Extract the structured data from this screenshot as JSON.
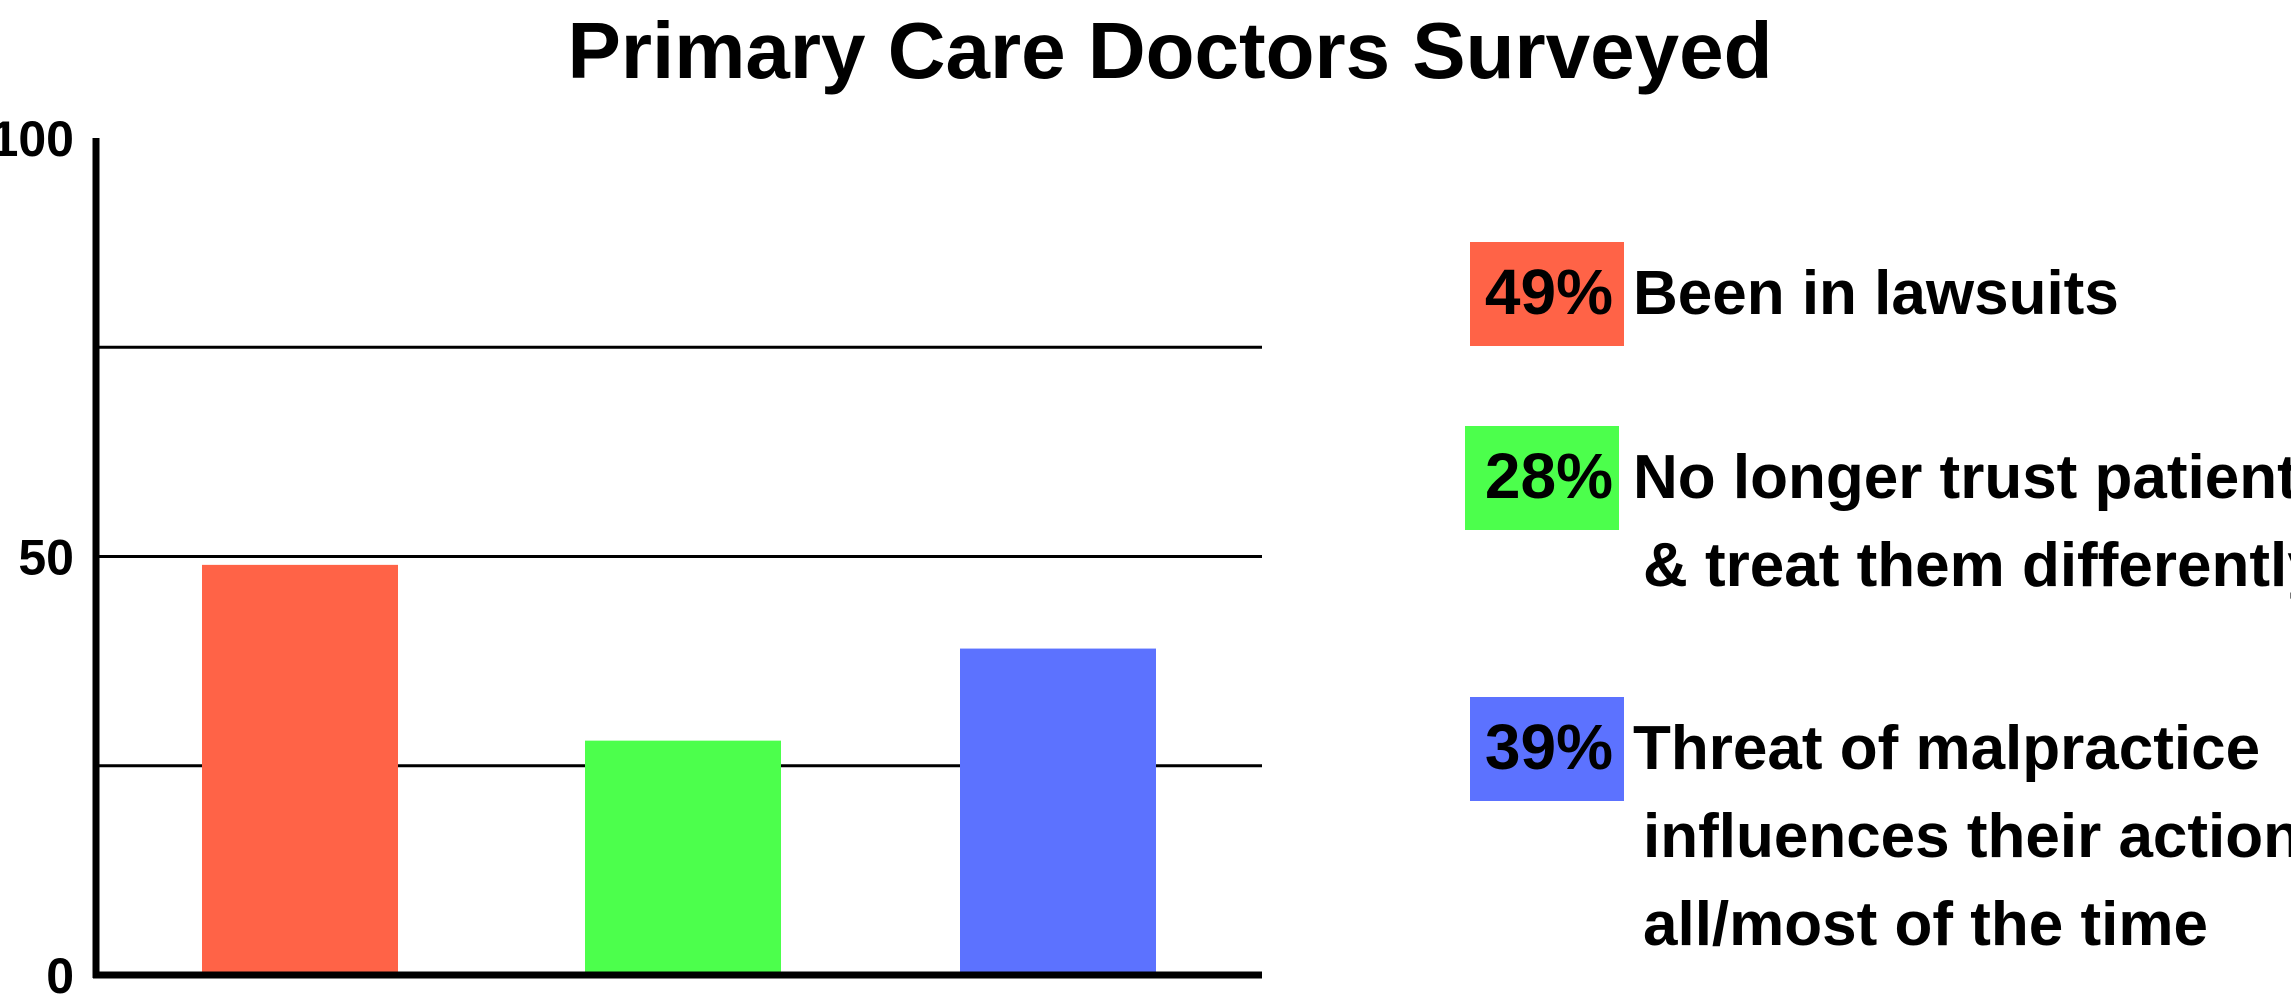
{
  "chart_data": {
    "type": "bar",
    "title": "Primary Care Doctors Surveyed",
    "xlabel": "",
    "ylabel": "",
    "ylim": [
      0,
      100
    ],
    "yticks": [
      {
        "value": 0,
        "label": "0"
      },
      {
        "value": 50,
        "label": "50"
      },
      {
        "value": 100,
        "label": "100"
      }
    ],
    "gridlines": [
      25,
      50,
      75
    ],
    "categories": [
      "Been in lawsuits",
      "No longer trust patients & treat them differently",
      "Threat of malpractice influences their actions all/most of the time"
    ],
    "values": [
      49,
      28,
      39
    ],
    "colors": [
      "#ff6347",
      "#4cff4c",
      "#5c72ff"
    ],
    "legend_position": "right",
    "legend": [
      {
        "percent": "49%",
        "lines": [
          "Been in lawsuits"
        ],
        "color": "#ff6347"
      },
      {
        "percent": "28%",
        "lines": [
          "No longer trust patients",
          "& treat them differently"
        ],
        "color": "#4cff4c"
      },
      {
        "percent": "39%",
        "lines": [
          "Threat of malpractice",
          "influences their actions",
          "all/most of the time"
        ],
        "color": "#5c72ff"
      }
    ]
  }
}
